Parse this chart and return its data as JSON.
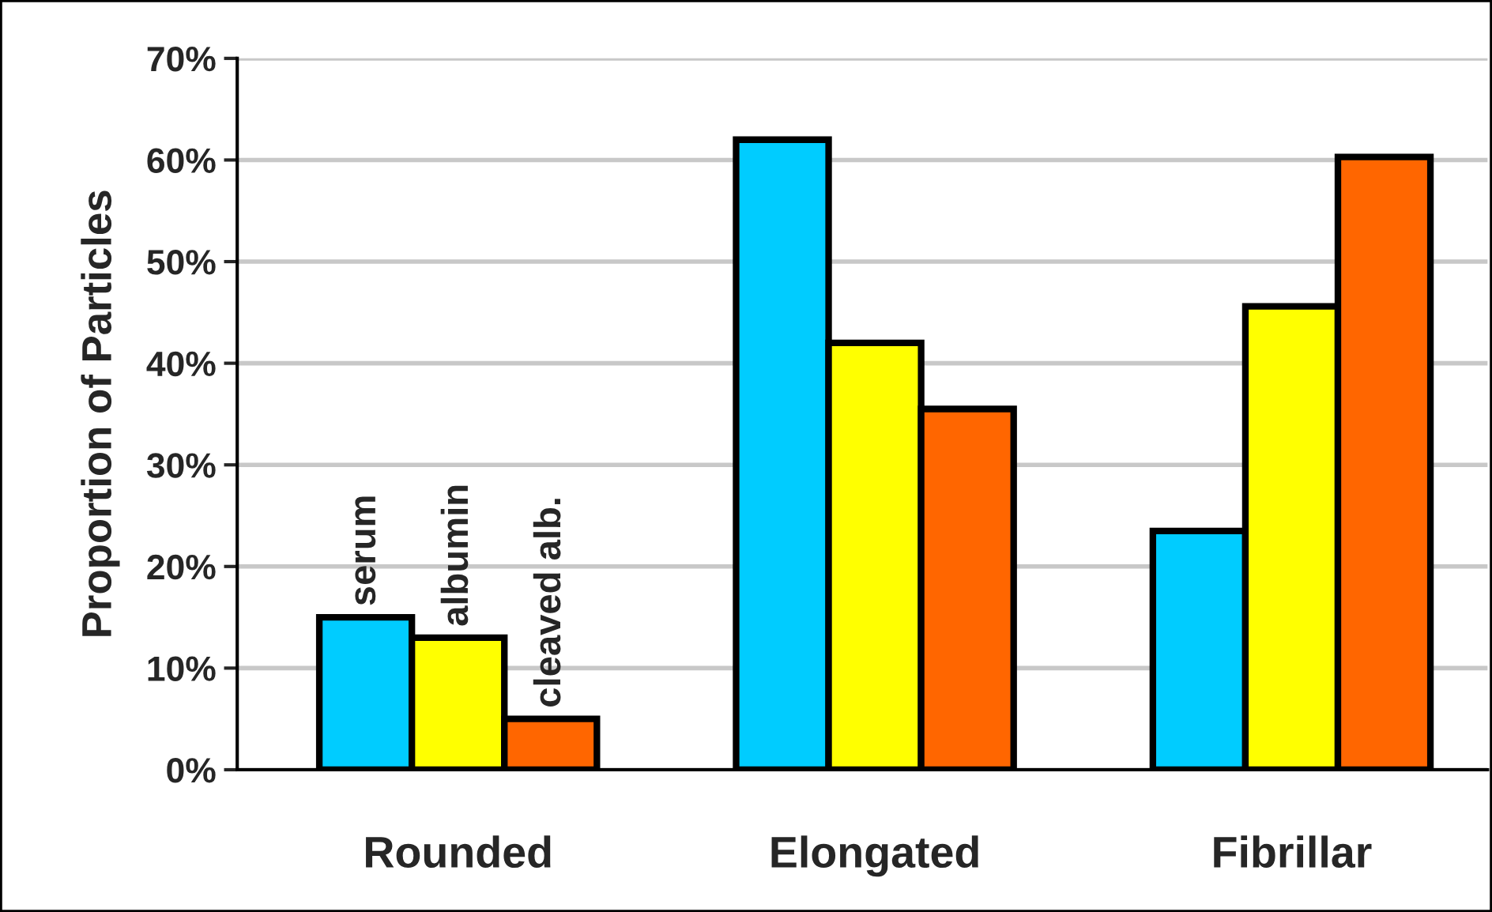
{
  "chart_data": {
    "type": "bar",
    "ylabel": "Proportion of Particles",
    "categories": [
      "Rounded",
      "Elongated",
      "Fibrillar"
    ],
    "series": [
      {
        "name": "serum",
        "color": "#00ccff",
        "values": [
          15,
          62,
          23.5
        ]
      },
      {
        "name": "albumin",
        "color": "#ffff00",
        "values": [
          13,
          42,
          45.6
        ]
      },
      {
        "name": "cleaved alb.",
        "color": "#ff6600",
        "values": [
          5,
          35.5,
          60.3
        ]
      }
    ],
    "ylim": [
      0,
      70
    ],
    "yticks": [
      {
        "value": 0,
        "label": "0%"
      },
      {
        "value": 10,
        "label": "10%"
      },
      {
        "value": 20,
        "label": "20%"
      },
      {
        "value": 30,
        "label": "30%"
      },
      {
        "value": 40,
        "label": "40%"
      },
      {
        "value": 50,
        "label": "50%"
      },
      {
        "value": 60,
        "label": "60%"
      },
      {
        "value": 70,
        "label": "70%"
      }
    ],
    "grid": "y",
    "legend": false
  }
}
